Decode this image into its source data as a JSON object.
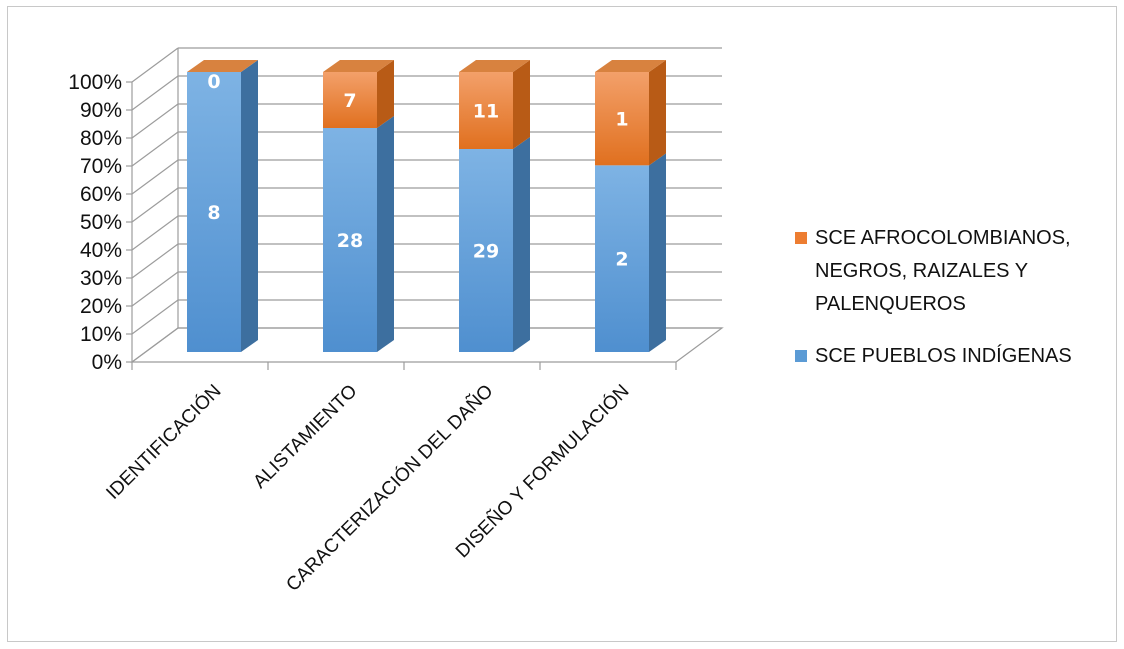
{
  "chart_data": {
    "type": "bar",
    "stacked": true,
    "normalized_percent": true,
    "three_d": true,
    "categories": [
      "IDENTIFICACIÓN",
      "ALISTAMIENTO",
      "CARACTERIZACIÓN DEL DAÑO",
      "DISEÑO Y FORMULACIÓN"
    ],
    "series": [
      {
        "name": "SCE PUEBLOS INDÍGENAS",
        "values": [
          8,
          28,
          29,
          2
        ],
        "color": "#5b9bd5"
      },
      {
        "name": "SCE AFROCOLOMBIANOS, NEGROS, RAIZALES Y PALENQUEROS",
        "values": [
          0,
          7,
          11,
          1
        ],
        "color": "#ed7d31"
      }
    ],
    "y_ticks": [
      "0%",
      "10%",
      "20%",
      "30%",
      "40%",
      "50%",
      "60%",
      "70%",
      "80%",
      "90%",
      "100%"
    ],
    "ylim": [
      0,
      100
    ],
    "grid": true,
    "legend_position": "right",
    "legend_lines": [
      [
        "SCE AFROCOLOMBIANOS,",
        "NEGROS, RAIZALES Y",
        "PALENQUEROS"
      ],
      [
        "SCE PUEBLOS INDÍGENAS"
      ]
    ],
    "title": "",
    "xlabel": "",
    "ylabel": ""
  }
}
